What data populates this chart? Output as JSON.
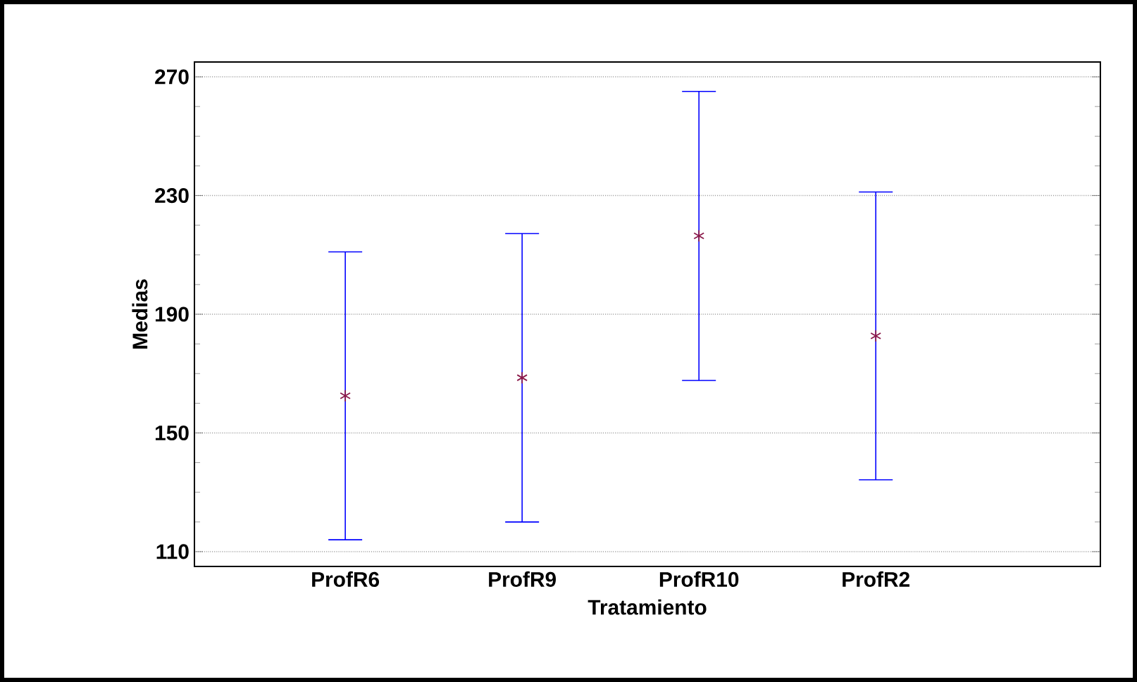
{
  "chart_data": {
    "type": "scatter",
    "xlabel": "Tratamiento",
    "ylabel": "Medias",
    "categories": [
      "ProfR6",
      "ProfR9",
      "ProfR10",
      "ProfR2"
    ],
    "series": [
      {
        "color": "#8b1a4a",
        "values": [
          162.5,
          168.6,
          216.4,
          182.7
        ],
        "errors": [
          48.5,
          48.6,
          48.7,
          48.5
        ]
      }
    ],
    "ylim": [
      105,
      275
    ],
    "yticks": [
      110,
      150,
      190,
      230,
      270
    ],
    "grid": "y",
    "marker": "cross"
  }
}
